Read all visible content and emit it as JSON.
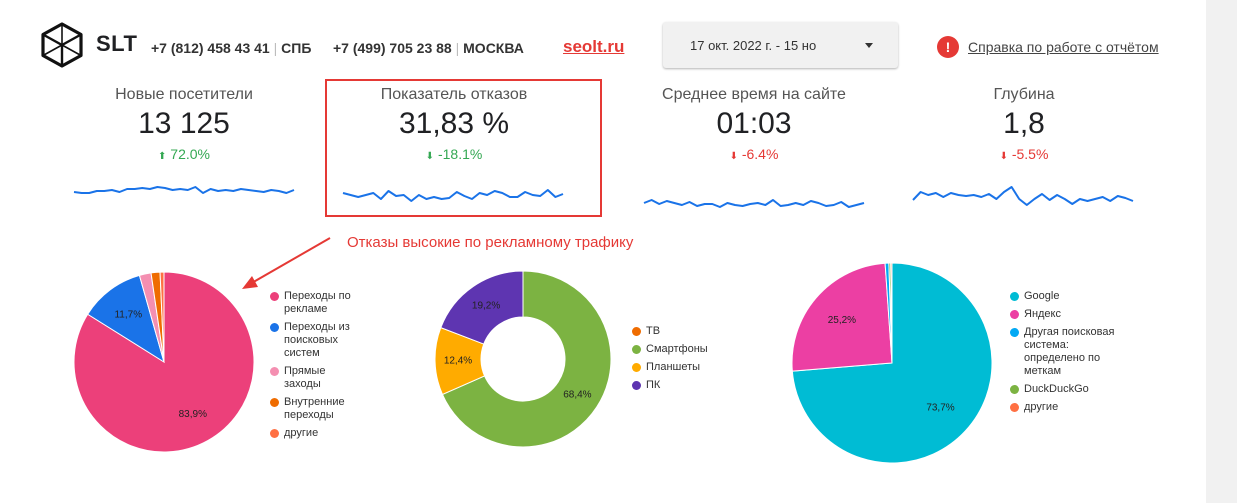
{
  "header": {
    "brand": "SLT",
    "contacts": [
      {
        "phone": "+7 (812) 458 43 41",
        "city": "СПБ"
      },
      {
        "phone": "+7 (499) 705 23 88",
        "city": "МОСКВА"
      }
    ],
    "site_link": "seolt.ru",
    "date_range": "17 окт. 2022 г. - 15 но",
    "help_icon": "info-icon",
    "help_icon_glyph": "!",
    "help_link": "Справка по работе с отчётом"
  },
  "kpis": [
    {
      "label": "Новые посетители",
      "value": "13 125",
      "delta": "72.0%",
      "direction": "up",
      "arrow": "⬆"
    },
    {
      "label": "Показатель отказов",
      "value": "31,83 %",
      "delta": "-18.1%",
      "direction": "down",
      "arrow": "⬇"
    },
    {
      "label": "Среднее время на сайте",
      "value": "01:03",
      "delta": "-6.4%",
      "direction": "down",
      "arrow": "⬇"
    },
    {
      "label": "Глубина",
      "value": "1,8",
      "delta": "-5.5%",
      "direction": "down",
      "arrow": "⬇"
    }
  ],
  "annotation": "Отказы высокие по рекламному трафику",
  "colors": {
    "accent_red": "#e53935",
    "spark_line": "#1a73e8",
    "up": "#34a853",
    "down": "#e53935"
  },
  "chart_data": [
    {
      "type": "line",
      "x": [
        1,
        2,
        3,
        4,
        5,
        6,
        7,
        8,
        9,
        10,
        11,
        12,
        13,
        14,
        15,
        16,
        17,
        18,
        19,
        20,
        21,
        22,
        23,
        24,
        25,
        26,
        27,
        28,
        29,
        30
      ],
      "values": [
        5.1,
        5.0,
        5.0,
        5.2,
        5.2,
        5.3,
        5.1,
        5.4,
        5.4,
        5.5,
        5.4,
        5.6,
        5.5,
        5.3,
        5.4,
        5.3,
        5.6,
        5.0,
        5.4,
        5.2,
        5.3,
        5.2,
        5.4,
        5.3,
        5.2,
        5.1,
        5.3,
        5.2,
        5.0,
        5.3
      ]
    },
    {
      "type": "line",
      "x": [
        1,
        2,
        3,
        4,
        5,
        6,
        7,
        8,
        9,
        10,
        11,
        12,
        13,
        14,
        15,
        16,
        17,
        18,
        19,
        20,
        21,
        22,
        23,
        24,
        25,
        26,
        27,
        28,
        29,
        30
      ],
      "values": [
        5.2,
        5.0,
        4.8,
        5.0,
        5.2,
        4.6,
        5.4,
        4.9,
        5.0,
        4.4,
        5.0,
        4.6,
        4.8,
        4.6,
        4.7,
        5.3,
        4.9,
        4.6,
        5.2,
        5.0,
        5.4,
        5.2,
        4.8,
        4.8,
        5.3,
        5.0,
        4.9,
        5.5,
        4.8,
        5.1
      ]
    },
    {
      "type": "line",
      "x": [
        1,
        2,
        3,
        4,
        5,
        6,
        7,
        8,
        9,
        10,
        11,
        12,
        13,
        14,
        15,
        16,
        17,
        18,
        19,
        20,
        21,
        22,
        23,
        24,
        25,
        26,
        27,
        28,
        29,
        30
      ],
      "values": [
        5.0,
        5.3,
        4.9,
        5.2,
        5.0,
        4.8,
        5.1,
        4.7,
        4.9,
        4.9,
        4.6,
        5.0,
        4.8,
        4.7,
        4.9,
        5.0,
        4.8,
        5.3,
        4.7,
        4.8,
        5.0,
        4.8,
        5.2,
        5.0,
        4.7,
        4.8,
        5.1,
        4.6,
        4.8,
        5.0
      ]
    },
    {
      "type": "line",
      "x": [
        1,
        2,
        3,
        4,
        5,
        6,
        7,
        8,
        9,
        10,
        11,
        12,
        13,
        14,
        15,
        16,
        17,
        18,
        19,
        20,
        21,
        22,
        23,
        24,
        25,
        26,
        27,
        28,
        29,
        30
      ],
      "values": [
        4.9,
        5.7,
        5.4,
        5.6,
        5.2,
        5.6,
        5.4,
        5.3,
        5.4,
        5.2,
        5.5,
        5.0,
        5.7,
        6.2,
        5.0,
        4.4,
        5.0,
        5.5,
        4.9,
        5.4,
        5.0,
        4.5,
        5.0,
        4.8,
        5.0,
        5.2,
        4.8,
        5.3,
        5.1,
        4.8
      ]
    },
    {
      "type": "pie",
      "slices": [
        {
          "name": "Переходы по рекламе",
          "value": 83.9,
          "color": "#ec407a"
        },
        {
          "name": "Переходы из поисковых систем",
          "value": 11.7,
          "color": "#1a73e8"
        },
        {
          "name": "Прямые заходы",
          "value": 2.1,
          "color": "#f48fb1"
        },
        {
          "name": "Внутренние переходы",
          "value": 1.6,
          "color": "#ef6c00"
        },
        {
          "name": "другие",
          "value": 0.7,
          "color": "#ff7043"
        }
      ],
      "labels": [
        "83,9%",
        "11,7%"
      ]
    },
    {
      "type": "pie",
      "donut": true,
      "slices": [
        {
          "name": "ТВ",
          "value": 0.0,
          "color": "#ef6c00"
        },
        {
          "name": "Смартфоны",
          "value": 68.4,
          "color": "#7cb342"
        },
        {
          "name": "Планшеты",
          "value": 12.4,
          "color": "#ffab00"
        },
        {
          "name": "ПК",
          "value": 19.2,
          "color": "#5e35b1"
        }
      ],
      "labels": [
        "68,4%",
        "12,4%",
        "19,2%"
      ]
    },
    {
      "type": "pie",
      "slices": [
        {
          "name": "Google",
          "value": 73.7,
          "color": "#00bcd4"
        },
        {
          "name": "Яндекс",
          "value": 25.2,
          "color": "#ec3fa3"
        },
        {
          "name": "Другая поисковая система: определено по меткам",
          "value": 0.6,
          "color": "#03a9f4"
        },
        {
          "name": "DuckDuckGo",
          "value": 0.3,
          "color": "#7cb342"
        },
        {
          "name": "другие",
          "value": 0.2,
          "color": "#ff7043"
        }
      ],
      "labels": [
        "73,7%",
        "25,2%"
      ]
    }
  ]
}
